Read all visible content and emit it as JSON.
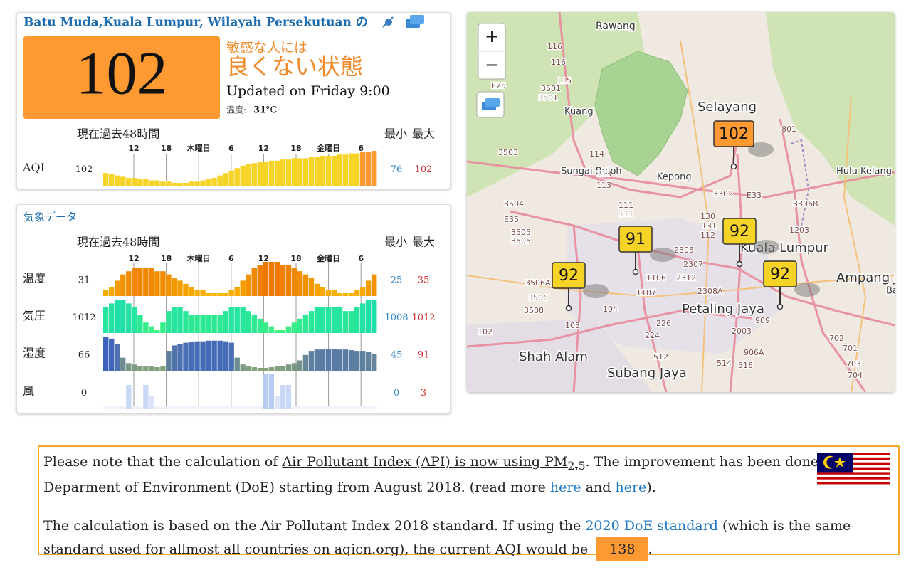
{
  "station": {
    "title": "Batu Muda,Kuala Lumpur, Wilayah Persekutuan の"
  },
  "aqi": {
    "value": 102,
    "color": "#ff9a33",
    "level_line1": "敏感な人には",
    "level_line2": "良くない状態",
    "updated": "Updated on Friday 9:00",
    "temp_label": "温度:",
    "temp_value": "31",
    "temp_unit": "°C"
  },
  "history": {
    "now_label": "現在",
    "past_label": "過去48時間",
    "min_label": "最小",
    "max_label": "最大",
    "time_ticks": [
      "12",
      "18",
      "木曜日",
      "6",
      "12",
      "18",
      "金曜日",
      "6"
    ],
    "rows": [
      {
        "label": "AQI",
        "current": 102,
        "min": 76,
        "max": 102,
        "colors": [
          "#f5d327",
          "#f5d327"
        ],
        "values": [
          84,
          83,
          82,
          81,
          80,
          80,
          79,
          79,
          78,
          78,
          77,
          77,
          76,
          76,
          76,
          77,
          77,
          78,
          79,
          80,
          82,
          84,
          86,
          88,
          90,
          91,
          92,
          93,
          93,
          94,
          94,
          95,
          95,
          96,
          96,
          96,
          97,
          97,
          98,
          98,
          98,
          99,
          99,
          100,
          100,
          101,
          101,
          102
        ]
      }
    ]
  },
  "weather": {
    "title": "気象データ",
    "now_label": "現在",
    "past_label": "過去48時間",
    "min_label": "最小",
    "max_label": "最大",
    "time_ticks": [
      "12",
      "18",
      "木曜日",
      "6",
      "12",
      "18",
      "金曜日",
      "6"
    ],
    "rows": [
      {
        "label": "温度",
        "current": 31,
        "min": 25,
        "max": 35,
        "colors": [
          "#f7b500",
          "#f07a00"
        ],
        "values": [
          26,
          27,
          29,
          31,
          32,
          33,
          33,
          33,
          33,
          32,
          32,
          31,
          30,
          29,
          28,
          27,
          26,
          26,
          25,
          25,
          25,
          25,
          26,
          27,
          29,
          31,
          33,
          34,
          35,
          35,
          35,
          34,
          34,
          33,
          32,
          31,
          30,
          28,
          27,
          26,
          26,
          25,
          25,
          25,
          26,
          27,
          29,
          31
        ]
      },
      {
        "label": "気圧",
        "current": 1012,
        "min": 1008,
        "max": 1012,
        "colors": [
          "#3cf27e",
          "#1fe0a8"
        ],
        "values": [
          1011,
          1011.5,
          1012,
          1012,
          1011.5,
          1011,
          1010,
          1009,
          1008.5,
          1008,
          1009,
          1010.5,
          1011,
          1011,
          1010.5,
          1010,
          1010,
          1010,
          1010,
          1010,
          1010,
          1010.5,
          1011,
          1011,
          1011,
          1010.5,
          1010,
          1009.5,
          1009,
          1008.5,
          1008,
          1008,
          1008.5,
          1009,
          1009.5,
          1010,
          1010.5,
          1011,
          1011,
          1011,
          1011,
          1011,
          1010.5,
          1010.5,
          1011,
          1011.5,
          1012,
          1012
        ]
      },
      {
        "label": "湿度",
        "current": 66,
        "min": 45,
        "max": 91,
        "colors": [
          "#86a27a",
          "#3b62c0"
        ],
        "values": [
          91,
          88,
          80,
          60,
          52,
          50,
          48,
          47,
          47,
          46,
          47,
          70,
          78,
          80,
          82,
          83,
          84,
          84,
          85,
          85,
          85,
          84,
          82,
          60,
          50,
          48,
          46,
          45,
          45,
          46,
          47,
          48,
          50,
          52,
          56,
          64,
          70,
          72,
          72,
          73,
          73,
          72,
          72,
          71,
          70,
          70,
          68,
          66
        ]
      },
      {
        "label": "風",
        "current": 0,
        "min": 0,
        "max": 3,
        "colors": [
          "#eef2fb",
          "#b8ccf2"
        ],
        "values": [
          0,
          0,
          0,
          0,
          2,
          0,
          0,
          2,
          1,
          0,
          0,
          0,
          0,
          0,
          0,
          0,
          0,
          0,
          0,
          0,
          0,
          0,
          0,
          0,
          0,
          0,
          0,
          0,
          3,
          3,
          1,
          2,
          2,
          0,
          0,
          0,
          0,
          0,
          0,
          0,
          0,
          0,
          0,
          0,
          0,
          0,
          0,
          0
        ]
      }
    ]
  },
  "map": {
    "zoom_in": "+",
    "zoom_out": "−",
    "places": [
      "Rawang",
      "Selayang",
      "Kuang",
      "Sungai Buloh",
      "Kepong",
      "Kuala Lumpur",
      "Petaling Jaya",
      "Shah Alam",
      "Subang Jaya",
      "Hulu Kelang",
      "Ampang Jaya",
      "Bat"
    ],
    "roads": [
      "116",
      "116",
      "115",
      "3501",
      "3501",
      "E25",
      "3503",
      "114",
      "113",
      "113",
      "3504",
      "E35",
      "3505",
      "3505",
      "111",
      "111",
      "3302",
      "130",
      "131",
      "112",
      "E33",
      "3306B",
      "1203",
      "801",
      "2305",
      "2307",
      "2312",
      "1106",
      "1107",
      "2308A",
      "3506A",
      "3506",
      "3508",
      "103",
      "104",
      "226",
      "224",
      "102",
      "2003",
      "909",
      "906A",
      "512",
      "514",
      "516",
      "701",
      "703",
      "704",
      "702"
    ],
    "markers": [
      {
        "value": 102
      },
      {
        "value": 91
      },
      {
        "value": 92
      },
      {
        "value": 92
      },
      {
        "value": 92
      }
    ]
  },
  "note": {
    "p1_a": "Please note that the calculation of ",
    "p1_link": "Air Pollutant Index (API) is now using PM",
    "p1_sub": "2.5",
    "p1_b": ". The improvement has been done by the Deparment of Environment (DoE) starting from August 2018. (read more ",
    "p1_here1": "here",
    "p1_and": " and ",
    "p1_here2": "here",
    "p1_end": ").",
    "p2_a": "The calculation is based on the Air Pollutant Index 2018 standard. If using the ",
    "p2_link": "2020 DoE standard",
    "p2_b": " (which is the same standard used for allmost all countries on aqicn.org), the current AQI would be ",
    "p2_badge": "138",
    "p2_end": "."
  }
}
